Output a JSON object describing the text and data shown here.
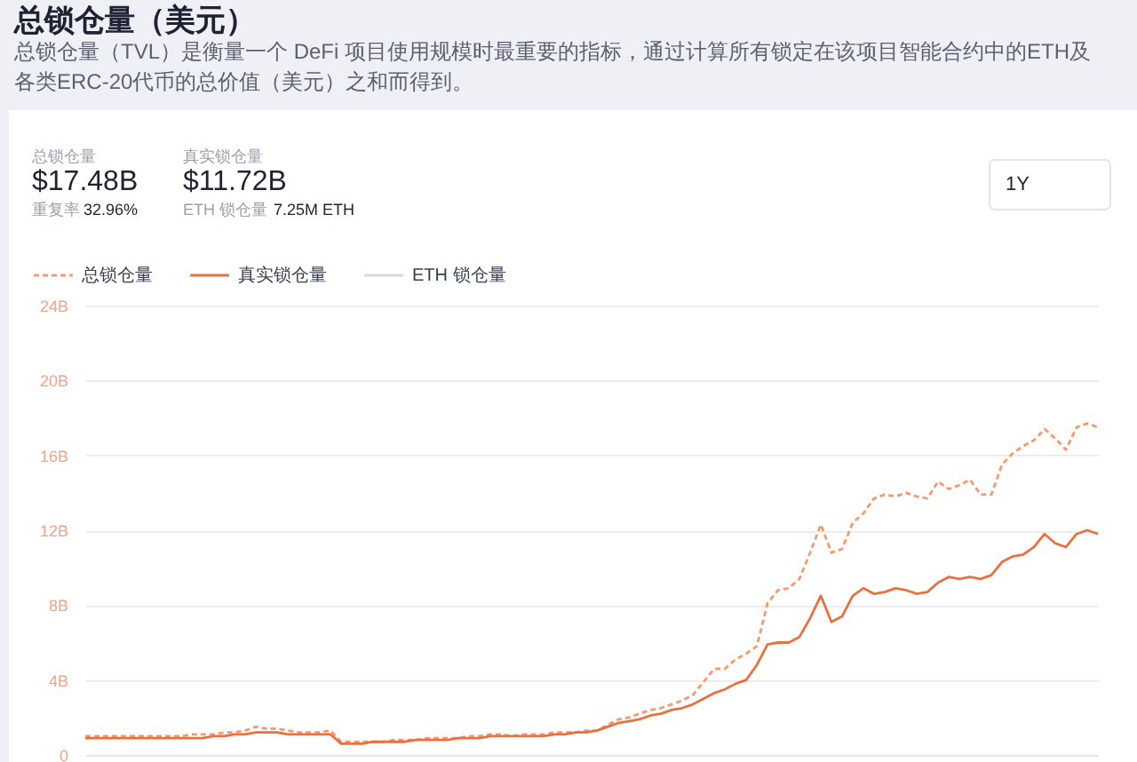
{
  "chart_data": {
    "type": "line",
    "title": "总锁仓量（美元）",
    "subtitle": "总锁仓量（TVL）是衡量一个 DeFi 项目使用规模时最重要的指标，通过计算所有锁定在该项目智能合约中的ETH及各类ERC-20代币的总价值（美元）之和而得到。",
    "categories": [
      null,
      null,
      null,
      null,
      null,
      null,
      null,
      null,
      null,
      null,
      null,
      null,
      null,
      null,
      null,
      null,
      null,
      null,
      null,
      null,
      null,
      null,
      null,
      null,
      null,
      null,
      null,
      null,
      null,
      null,
      null,
      null,
      null,
      null,
      null,
      null,
      null,
      null,
      null,
      null,
      null,
      null,
      null,
      null,
      null,
      null,
      null,
      null,
      null,
      null,
      null,
      null,
      null,
      null,
      null,
      null,
      null,
      null,
      null,
      null,
      null,
      null,
      null,
      null,
      null,
      null,
      null,
      null,
      null,
      null,
      null,
      null,
      null,
      null,
      null,
      null,
      null,
      null,
      null,
      null,
      null,
      null,
      null,
      null,
      null,
      null,
      null,
      null,
      null,
      null,
      null,
      null,
      null,
      null,
      null,
      null
    ],
    "series": [
      {
        "name": "总锁仓量",
        "color": "#f29b70",
        "line_style": "dashed",
        "values": [
          1.0,
          1.0,
          1.0,
          1.0,
          1.0,
          1.0,
          1.0,
          1.0,
          1.0,
          1.0,
          1.1,
          1.1,
          1.1,
          1.2,
          1.2,
          1.3,
          1.5,
          1.4,
          1.4,
          1.3,
          1.2,
          1.2,
          1.2,
          1.3,
          0.7,
          0.7,
          0.7,
          0.7,
          0.7,
          0.8,
          0.8,
          0.8,
          0.9,
          0.9,
          0.9,
          0.9,
          1.0,
          1.0,
          1.1,
          1.1,
          1.0,
          1.1,
          1.1,
          1.1,
          1.2,
          1.2,
          1.2,
          1.3,
          1.3,
          1.6,
          1.9,
          2.0,
          2.2,
          2.4,
          2.5,
          2.7,
          2.9,
          3.2,
          3.9,
          4.6,
          4.6,
          5.1,
          5.4,
          5.8,
          8.1,
          8.8,
          8.9,
          9.4,
          10.8,
          12.3,
          10.8,
          11.0,
          12.4,
          12.9,
          13.7,
          13.9,
          13.8,
          14.0,
          13.8,
          13.7,
          14.6,
          14.2,
          14.4,
          14.7,
          13.9,
          13.9,
          15.5,
          16.1,
          16.5,
          16.8,
          17.4,
          16.9,
          16.3,
          17.5,
          17.7,
          17.5
        ]
      },
      {
        "name": "真实锁仓量",
        "color": "#e8713f",
        "line_style": "solid",
        "values": [
          0.9,
          0.9,
          0.9,
          0.9,
          0.9,
          0.9,
          0.9,
          0.9,
          0.9,
          0.9,
          0.9,
          0.9,
          1.0,
          1.0,
          1.1,
          1.1,
          1.2,
          1.2,
          1.2,
          1.1,
          1.1,
          1.1,
          1.1,
          1.1,
          0.6,
          0.6,
          0.6,
          0.7,
          0.7,
          0.7,
          0.7,
          0.8,
          0.8,
          0.8,
          0.8,
          0.9,
          0.9,
          0.9,
          1.0,
          1.0,
          1.0,
          1.0,
          1.0,
          1.0,
          1.1,
          1.1,
          1.2,
          1.2,
          1.3,
          1.5,
          1.7,
          1.8,
          1.9,
          2.1,
          2.2,
          2.4,
          2.5,
          2.7,
          3.0,
          3.3,
          3.5,
          3.8,
          4.0,
          4.8,
          5.9,
          6.0,
          6.0,
          6.3,
          7.3,
          8.5,
          7.1,
          7.4,
          8.5,
          8.9,
          8.6,
          8.7,
          8.9,
          8.8,
          8.6,
          8.7,
          9.2,
          9.5,
          9.4,
          9.5,
          9.4,
          9.6,
          10.3,
          10.6,
          10.7,
          11.1,
          11.8,
          11.3,
          11.1,
          11.8,
          12.0,
          11.8
        ]
      },
      {
        "name": "ETH 锁仓量",
        "color": "#d9d9d9",
        "line_style": "solid",
        "values": [
          null,
          null,
          null,
          null,
          null,
          null,
          null,
          null,
          null,
          null,
          null,
          null,
          null,
          null,
          null,
          null,
          null,
          null,
          null,
          null,
          null,
          null,
          null,
          null,
          null,
          null,
          null,
          null,
          null,
          null,
          null,
          null,
          null,
          null,
          null,
          null,
          null,
          null,
          null,
          null,
          null,
          null,
          null,
          null,
          null,
          null,
          null,
          null,
          null,
          null,
          null,
          null,
          null,
          null,
          null,
          null,
          null,
          null,
          null,
          null,
          null,
          null,
          null,
          null,
          null,
          null,
          null,
          null,
          null,
          null,
          null,
          null,
          null,
          null,
          null,
          null,
          null,
          null,
          null,
          null,
          null,
          null,
          null,
          null,
          null,
          null,
          null,
          null,
          null,
          null,
          null,
          null,
          null,
          null,
          null,
          null
        ]
      }
    ],
    "ylim": [
      0,
      24
    ],
    "yticks": [
      0,
      {
        "value": 4,
        "label": "4B"
      },
      {
        "value": 8,
        "label": "8B"
      },
      {
        "value": 12,
        "label": "12B"
      },
      {
        "value": 16,
        "label": "16B"
      },
      {
        "value": 20,
        "label": "20B"
      },
      {
        "value": 24,
        "label": "24B"
      }
    ],
    "grid": "y",
    "legend": "top left",
    "tick_labels": "y",
    "annotations": [
      "总锁仓量",
      "$17.48B",
      "重复率",
      "32.96%",
      "真实锁仓量",
      "$11.72B",
      "ETH 锁仓量",
      "7.25M ETH",
      "1Y"
    ]
  }
}
